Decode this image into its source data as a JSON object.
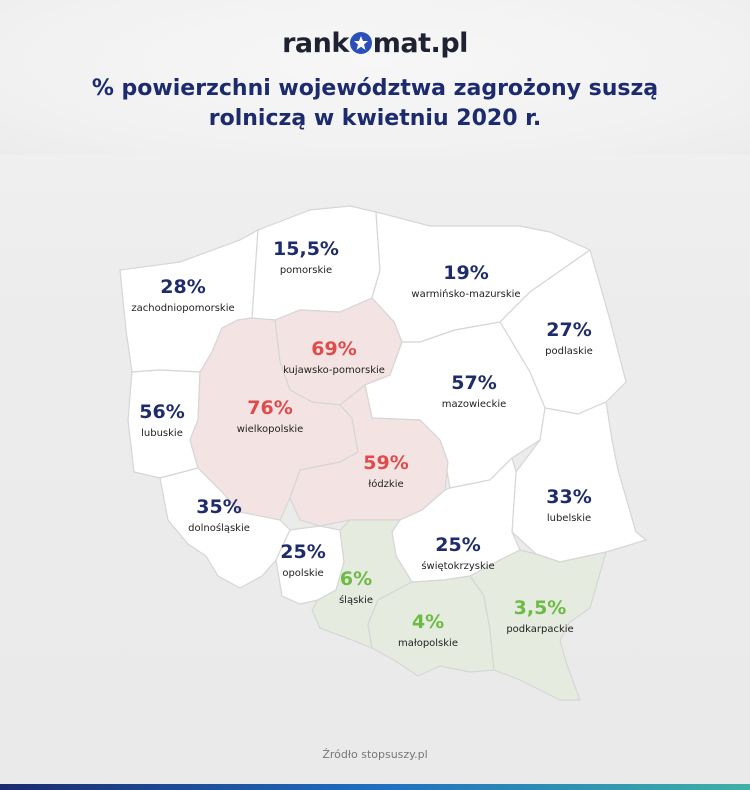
{
  "logo": {
    "part1": "rank",
    "part2": "mat.pl"
  },
  "title": {
    "line1": "% powierzchni województwa zagrożony suszą",
    "line2": "rolniczą w kwietniu 2020 r."
  },
  "source": "Źródło stopsuszy.pl",
  "colors": {
    "low": "#1f2c6b",
    "high": "#e04b4b",
    "green": "#6cbb45",
    "high_fill": "#f4e3e3",
    "green_fill": "#e6ebe0"
  },
  "regions": [
    {
      "key": "pomorskie",
      "name": "pomorskie",
      "value": "15,5%",
      "level": "low"
    },
    {
      "key": "zachodniopomorskie",
      "name": "zachodniopomorskie",
      "value": "28%",
      "level": "low"
    },
    {
      "key": "warminsko",
      "name": "warmińsko-mazurskie",
      "value": "19%",
      "level": "low"
    },
    {
      "key": "podlaskie",
      "name": "podlaskie",
      "value": "27%",
      "level": "low"
    },
    {
      "key": "kujawsko",
      "name": "kujawsko-pomorskie",
      "value": "69%",
      "level": "high"
    },
    {
      "key": "lubuskie",
      "name": "lubuskie",
      "value": "56%",
      "level": "low"
    },
    {
      "key": "wielkopolskie",
      "name": "wielkopolskie",
      "value": "76%",
      "level": "high"
    },
    {
      "key": "mazowieckie",
      "name": "mazowieckie",
      "value": "57%",
      "level": "low"
    },
    {
      "key": "lodzkie",
      "name": "łódzkie",
      "value": "59%",
      "level": "high"
    },
    {
      "key": "lubelskie",
      "name": "lubelskie",
      "value": "33%",
      "level": "low"
    },
    {
      "key": "dolnoslaskie",
      "name": "dolnośląskie",
      "value": "35%",
      "level": "low"
    },
    {
      "key": "opolskie",
      "name": "opolskie",
      "value": "25%",
      "level": "low"
    },
    {
      "key": "swietokrzyskie",
      "name": "świętokrzyskie",
      "value": "25%",
      "level": "low"
    },
    {
      "key": "slaskie",
      "name": "śląskie",
      "value": "6%",
      "level": "green"
    },
    {
      "key": "malopolskie",
      "name": "małopolskie",
      "value": "4%",
      "level": "green"
    },
    {
      "key": "podkarpackie",
      "name": "podkarpackie",
      "value": "3,5%",
      "level": "green"
    }
  ]
}
